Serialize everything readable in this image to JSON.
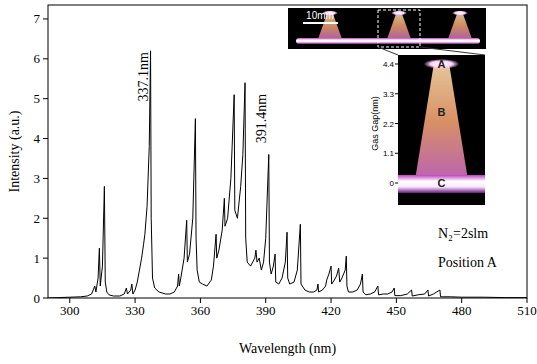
{
  "chart_data": {
    "type": "line",
    "x_label": "Wavelength (nm)",
    "y_label": "Intensity (a.u.)",
    "color": "#000000",
    "x": [
      290,
      300,
      305,
      308,
      310,
      311.5,
      312,
      313,
      313.6,
      314,
      315,
      315.9,
      316.3,
      317,
      318,
      320,
      323,
      325,
      326,
      326.5,
      328,
      328.5,
      329,
      330,
      331,
      332,
      333,
      333.9,
      334.5,
      335.5,
      336.5,
      337.1,
      337.4,
      338,
      339,
      341,
      344,
      346,
      348,
      349.5,
      350,
      350.3,
      351,
      352.5,
      353.7,
      354,
      355,
      356.5,
      357.7,
      358,
      358.5,
      359.5,
      361,
      363,
      365,
      366,
      367.2,
      367.5,
      368.5,
      370,
      371,
      371.3,
      372.5,
      374,
      375.5,
      375.8,
      377,
      378.5,
      379.5,
      380.5,
      380.8,
      381.5,
      383,
      385,
      385.5,
      386,
      387,
      388,
      389,
      390,
      391.4,
      391.7,
      392.5,
      393.5,
      394.3,
      394.6,
      396,
      397.5,
      399,
      399.8,
      400.1,
      401,
      403,
      404.5,
      405.9,
      406.2,
      408,
      410,
      412,
      413.5,
      414,
      414.3,
      416,
      417.5,
      418,
      419,
      420,
      420.3,
      421.5,
      422.5,
      423.5,
      424,
      425,
      426.5,
      427,
      427.3,
      428,
      430,
      432,
      433.5,
      434.4,
      434.7,
      436,
      438,
      440,
      441.5,
      441.8,
      444,
      446,
      448,
      449,
      449.3,
      452,
      455,
      457,
      457.3,
      460,
      463,
      464.5,
      464.8,
      467,
      470,
      470.3,
      475,
      480,
      490,
      500,
      510
    ],
    "values": [
      0,
      0.02,
      0.03,
      0.05,
      0.1,
      0.3,
      0.15,
      0.5,
      1.25,
      0.3,
      0.8,
      2.8,
      0.4,
      0.15,
      0.08,
      0.05,
      0.05,
      0.1,
      0.25,
      0.1,
      0.2,
      0.35,
      0.1,
      0.2,
      0.4,
      0.7,
      1.0,
      1.35,
      1.6,
      2.3,
      3.8,
      6.2,
      2.0,
      0.5,
      0.25,
      0.15,
      0.1,
      0.1,
      0.15,
      0.3,
      0.6,
      0.3,
      0.5,
      1.0,
      1.95,
      0.9,
      1.1,
      2.0,
      4.5,
      1.5,
      0.7,
      0.4,
      0.35,
      0.3,
      0.45,
      0.8,
      1.6,
      1.0,
      1.2,
      1.7,
      2.5,
      1.8,
      2.0,
      3.0,
      5.1,
      2.2,
      2.0,
      2.8,
      3.6,
      5.4,
      1.5,
      0.9,
      0.8,
      1.0,
      1.2,
      0.9,
      1.0,
      0.7,
      0.9,
      1.5,
      3.6,
      0.9,
      0.6,
      0.8,
      1.1,
      0.4,
      0.35,
      0.5,
      0.9,
      1.65,
      0.5,
      0.35,
      0.4,
      0.7,
      1.85,
      0.35,
      0.2,
      0.15,
      0.15,
      0.2,
      0.35,
      0.15,
      0.2,
      0.3,
      0.45,
      0.6,
      0.8,
      0.35,
      0.45,
      0.55,
      0.75,
      0.4,
      0.5,
      0.7,
      1.05,
      0.3,
      0.15,
      0.15,
      0.2,
      0.35,
      0.6,
      0.15,
      0.08,
      0.1,
      0.15,
      0.3,
      0.08,
      0.1,
      0.1,
      0.15,
      0.25,
      0.06,
      0.06,
      0.1,
      0.2,
      0.05,
      0.08,
      0.1,
      0.2,
      0.05,
      0.1,
      0.2,
      0.03,
      0.03,
      0.02,
      0.02,
      0.01,
      0.01
    ],
    "xlim": [
      290,
      510
    ],
    "xticks": [
      300,
      330,
      360,
      390,
      420,
      450,
      480,
      510
    ],
    "ylim": [
      0,
      7.35
    ],
    "yticks": [
      0,
      1,
      2,
      3,
      4,
      5,
      6,
      7
    ],
    "grid": false,
    "annotations": [
      {
        "text": "337.1nm",
        "x": 337.1,
        "y": 5.55
      },
      {
        "text": "391.4nm",
        "x": 391.4,
        "y": 4.5
      }
    ],
    "notes": [
      "N₂=2slm",
      "Position A"
    ],
    "inset": {
      "scale_bar": "10mm",
      "y_label": "Gas Gap(nm)",
      "ylim": [
        0,
        4.4
      ],
      "yticks": [
        0,
        1.1,
        2.2,
        3.3,
        4.4
      ],
      "labels": [
        "A",
        "B",
        "C"
      ]
    }
  }
}
